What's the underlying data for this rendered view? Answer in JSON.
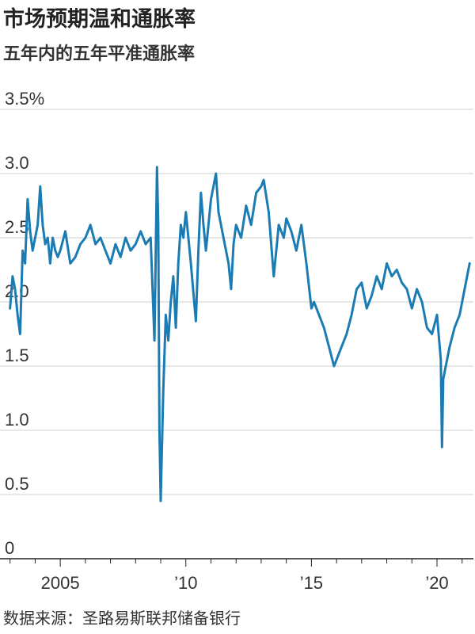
{
  "title": "市场预期温和通胀率",
  "subtitle": "五年内的五年平准通胀率",
  "source": "数据来源：圣路易斯联邦储备银行",
  "colors": {
    "line": "#1b7cb3",
    "grid": "#cfcfcf",
    "axis": "#222222"
  },
  "chart_data": {
    "type": "line",
    "title": "市场预期温和通胀率",
    "subtitle": "五年内的五年平准通胀率",
    "ylabel": "",
    "xlabel": "",
    "ylim": [
      0,
      3.5
    ],
    "xlim": [
      2002.6,
      2021.45
    ],
    "yticks": [
      {
        "value": 0,
        "label": "0"
      },
      {
        "value": 0.5,
        "label": "0.5"
      },
      {
        "value": 1.0,
        "label": "1.0"
      },
      {
        "value": 1.5,
        "label": "1.5"
      },
      {
        "value": 2.0,
        "label": "2.0"
      },
      {
        "value": 2.5,
        "label": "2.5"
      },
      {
        "value": 3.0,
        "label": "3.0"
      },
      {
        "value": 3.5,
        "label": "3.5%"
      }
    ],
    "xticks": [
      {
        "value": 2005,
        "label": "2005"
      },
      {
        "value": 2010,
        "label": "’10"
      },
      {
        "value": 2015,
        "label": "’15"
      },
      {
        "value": 2020,
        "label": "’20"
      }
    ],
    "grid": true,
    "series": [
      {
        "name": "",
        "x": [
          2003.0,
          2003.1,
          2003.2,
          2003.3,
          2003.4,
          2003.5,
          2003.6,
          2003.7,
          2003.8,
          2003.9,
          2004.0,
          2004.1,
          2004.2,
          2004.3,
          2004.4,
          2004.5,
          2004.6,
          2004.7,
          2004.8,
          2004.9,
          2005.0,
          2005.2,
          2005.4,
          2005.6,
          2005.8,
          2006.0,
          2006.2,
          2006.4,
          2006.6,
          2006.8,
          2007.0,
          2007.2,
          2007.4,
          2007.6,
          2007.8,
          2008.0,
          2008.2,
          2008.4,
          2008.6,
          2008.75,
          2008.85,
          2008.9,
          2008.95,
          2009.0,
          2009.1,
          2009.2,
          2009.3,
          2009.4,
          2009.5,
          2009.6,
          2009.7,
          2009.8,
          2009.9,
          2010.0,
          2010.2,
          2010.4,
          2010.5,
          2010.6,
          2010.7,
          2010.8,
          2011.0,
          2011.2,
          2011.3,
          2011.5,
          2011.7,
          2011.8,
          2011.9,
          2012.0,
          2012.2,
          2012.4,
          2012.6,
          2012.8,
          2013.0,
          2013.1,
          2013.3,
          2013.5,
          2013.7,
          2013.9,
          2014.0,
          2014.2,
          2014.4,
          2014.6,
          2014.8,
          2015.0,
          2015.1,
          2015.3,
          2015.5,
          2015.7,
          2015.9,
          2016.0,
          2016.2,
          2016.4,
          2016.6,
          2016.8,
          2017.0,
          2017.2,
          2017.4,
          2017.6,
          2017.8,
          2018.0,
          2018.2,
          2018.4,
          2018.6,
          2018.8,
          2019.0,
          2019.2,
          2019.4,
          2019.6,
          2019.8,
          2020.0,
          2020.15,
          2020.2,
          2020.25,
          2020.35,
          2020.5,
          2020.7,
          2020.9,
          2021.1,
          2021.3
        ],
        "values": [
          1.95,
          2.2,
          2.1,
          1.9,
          1.75,
          2.4,
          2.3,
          2.8,
          2.55,
          2.4,
          2.5,
          2.6,
          2.9,
          2.6,
          2.45,
          2.5,
          2.3,
          2.5,
          2.4,
          2.35,
          2.4,
          2.55,
          2.3,
          2.35,
          2.45,
          2.5,
          2.6,
          2.45,
          2.5,
          2.4,
          2.3,
          2.45,
          2.35,
          2.5,
          2.4,
          2.45,
          2.55,
          2.45,
          2.5,
          1.7,
          3.05,
          2.6,
          1.0,
          0.45,
          1.3,
          1.9,
          1.7,
          2.0,
          2.2,
          1.8,
          2.3,
          2.6,
          2.5,
          2.7,
          2.3,
          1.85,
          2.4,
          2.85,
          2.6,
          2.4,
          2.8,
          3.0,
          2.7,
          2.5,
          2.3,
          2.1,
          2.45,
          2.6,
          2.5,
          2.75,
          2.6,
          2.85,
          2.9,
          2.95,
          2.7,
          2.2,
          2.6,
          2.5,
          2.65,
          2.55,
          2.4,
          2.6,
          2.3,
          1.95,
          2.0,
          1.9,
          1.8,
          1.65,
          1.5,
          1.55,
          1.65,
          1.75,
          1.9,
          2.1,
          2.15,
          1.95,
          2.05,
          2.2,
          2.1,
          2.3,
          2.2,
          2.25,
          2.15,
          2.1,
          1.95,
          2.1,
          2.0,
          1.8,
          1.75,
          1.9,
          1.55,
          0.87,
          1.4,
          1.5,
          1.65,
          1.8,
          1.9,
          2.1,
          2.3
        ]
      }
    ]
  }
}
